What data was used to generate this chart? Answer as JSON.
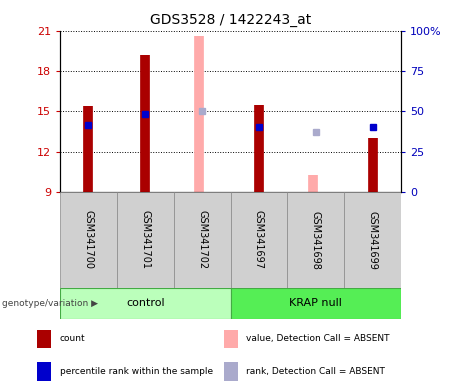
{
  "title": "GDS3528 / 1422243_at",
  "samples": [
    "GSM341700",
    "GSM341701",
    "GSM341702",
    "GSM341697",
    "GSM341698",
    "GSM341699"
  ],
  "ylim_left": [
    9,
    21
  ],
  "ylim_right": [
    0,
    100
  ],
  "yticks_left": [
    9,
    12,
    15,
    18,
    21
  ],
  "yticks_right": [
    0,
    25,
    50,
    75,
    100
  ],
  "left_axis_color": "#cc0000",
  "right_axis_color": "#0000bb",
  "count_color": "#aa0000",
  "percentile_color": "#0000cc",
  "absent_value_color": "#ffaaaa",
  "absent_rank_color": "#aaaacc",
  "count_values": [
    15.4,
    19.2,
    null,
    15.5,
    null,
    13.0
  ],
  "percentile_values": [
    14.0,
    14.8,
    null,
    13.8,
    null,
    13.8
  ],
  "absent_value_values": [
    null,
    null,
    20.6,
    null,
    10.3,
    null
  ],
  "absent_rank_values": [
    null,
    null,
    15.0,
    null,
    13.5,
    null
  ],
  "group_spans": [
    {
      "start": 0,
      "end": 2,
      "label": "control",
      "facecolor": "#bbffbb",
      "edgecolor": "#44aa44"
    },
    {
      "start": 3,
      "end": 5,
      "label": "KRAP null",
      "facecolor": "#55ee55",
      "edgecolor": "#44aa44"
    }
  ],
  "legend_items": [
    {
      "label": "count",
      "color": "#aa0000"
    },
    {
      "label": "percentile rank within the sample",
      "color": "#0000cc"
    },
    {
      "label": "value, Detection Call = ABSENT",
      "color": "#ffaaaa"
    },
    {
      "label": "rank, Detection Call = ABSENT",
      "color": "#aaaacc"
    }
  ]
}
